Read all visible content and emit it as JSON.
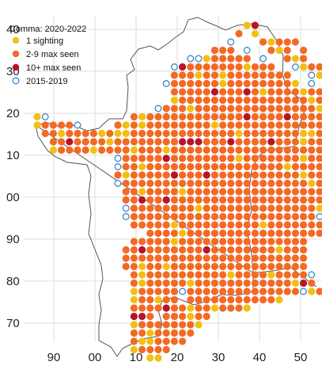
{
  "legend": {
    "title": "Comma:  2020-2022",
    "entries": [
      {
        "key": "one",
        "label": "1 sighting",
        "style": "filled",
        "color": "#f2c012"
      },
      {
        "key": "many",
        "label": "2-9 max seen",
        "style": "filled",
        "color": "#f26a25"
      },
      {
        "key": "lots",
        "label": "10+ max seen",
        "style": "filled",
        "color": "#b5142a"
      },
      {
        "key": "old",
        "label": "2015-2019",
        "style": "ring",
        "color": "#3a86c8"
      }
    ]
  },
  "axes": {
    "x_ticks": [
      "90",
      "00",
      "10",
      "20",
      "30",
      "40",
      "50"
    ],
    "y_ticks": [
      "40",
      "30",
      "20",
      "10",
      "00",
      "90",
      "80",
      "70"
    ]
  },
  "colors": {
    "grid": "#dcdcdc",
    "coast": "#555555",
    "ring": "#3a86c8"
  },
  "dot_grid": [
    "..........................Y#..........",
    ".........................O.Y..........",
    "........................o...OYOOO.....",
    "......................OOO.o..OYO.O....",
    "...................ooYOOOOO.o..OYO....",
    ".................o#OOOOOOOYOOO..oYOO..",
    ".................OOOYOOYOOOOOOOO..oY..",
    "................oOOOOOOYOOOOOOOOY.o...",
    ".................OOOOO#OOO#OYOOOOYOOoo",
    ".................YOOOOOOOOOOOOOOOOYOO#",
    "...............oOOOYOOOOOOOOOOOOOOOYOO",
    "Yo..........OYOOOOOOOOOOOO#OOOO#OOOOYO",
    "YOOOOo....OYOYOOOOOOOOYOOOOOOOOOOOOOOY",
    ".OOYOOOOYOYYOOOOOOOOOOOOOYOOOOOOOYYOOY",
    "..OO#OOOOYOOOOOOOO###OOO#OOOO#OOOYOO..",
    "..YOOOOYOOOOYOOOYOOOOOOOOOOOOOOOOOOO..",
    "..........oOOOOO#OOOOOOOOYOOOOOOOYOOO.",
    "..........oOOYOOOOOOOOOOOOOOOOOYOOOOO.",
    "..........OYOOOOO#OOO#OOOOOOOOOOOYOOO.",
    "..........oOOOOOOOOOOOOOOOOOOOOOOOYOO.",
    "...........OOYOOOOYOOOOOOOOOOOOOOOOOO.",
    "...........OO#OO#OOOOOOOOOOOOOOOOOOOO.",
    "...........oOOOOOOOOYOOOOOOOOOOOOOOYO.",
    "...........oOOOOOOOOOOOOOOOOOOOOOOOo..",
    "............OOOOOYOOOOOOOOOOYOOOOOOO..",
    "..............OOOOYOOOOOOOOOOOOOOOOO..",
    "............OOOOOYOOOOOOOOOOOOOOOO....",
    "...........OO#OOOOOOO#OOOOOOOOYOOO....",
    "...........OOOOOOOOOOOOOOOOOOOOOOO....",
    "...........OOYOOYOOOOOOOOOOOOOOOOO....",
    "............OYOOOOOOOOOOYOOOOYOOOOo...",
    "............OYOOOOOYOOOOOOOOOOOOY#O...",
    "............YOOOOOoOOOOOOOOOOOOOOoYO..",
    "............YOOYOO.OOOOOOOOOOOY.......",
    "............OOOO#OOYOOYOOOY...........",
    "............##O.OOOYOO................",
    "............YOOOOOOOY.................",
    "............OOYOOOOO..................",
    "............OYYOOOO...................",
    "............YOOOO.....................",
    "..............YY......................"
  ]
}
